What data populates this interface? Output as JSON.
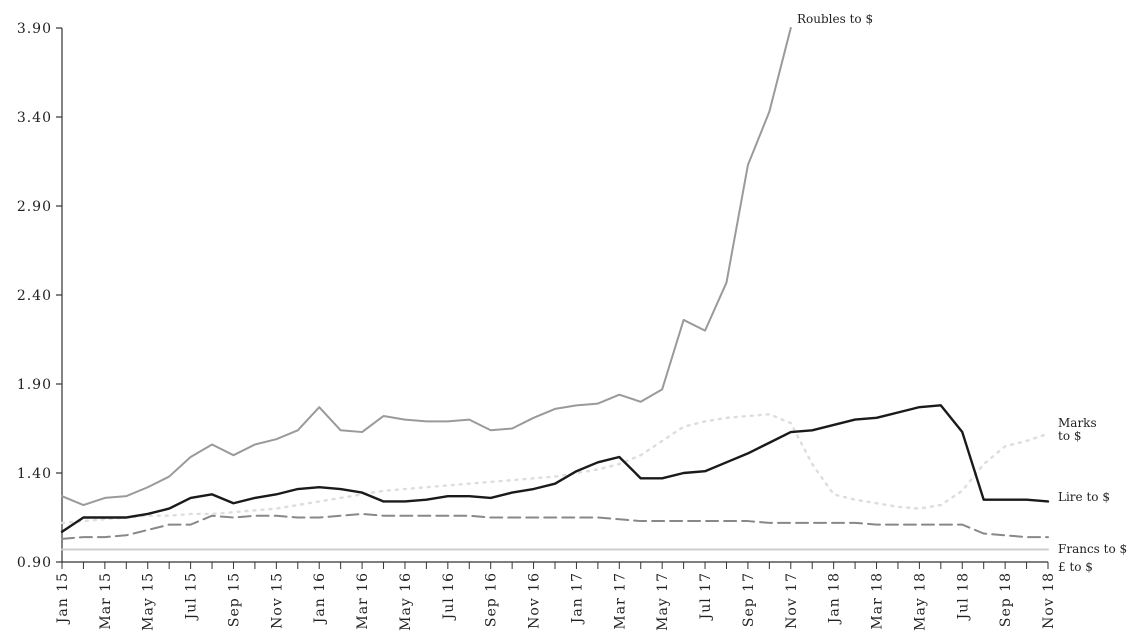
{
  "chart_data": {
    "type": "line",
    "title": "",
    "xlabel": "",
    "ylabel": "",
    "ylim": [
      0.9,
      3.9
    ],
    "yticks": [
      "0.90",
      "1.40",
      "1.90",
      "2.40",
      "2.90",
      "3.40",
      "3.90"
    ],
    "x_tick_labels": [
      "Jan 15",
      "Mar 15",
      "May 15",
      "Jul 15",
      "Sep 15",
      "Nov 15",
      "Jan 16",
      "Mar 16",
      "May 16",
      "Jul 16",
      "Sep 16",
      "Nov 16",
      "Jan 17",
      "Mar 17",
      "May 17",
      "Jul 17",
      "Sep 17",
      "Nov 17",
      "Jan 18",
      "Mar 18",
      "May 18",
      "Jul 18",
      "Sep 18",
      "Nov 18"
    ],
    "x_months": [
      "Jan 15",
      "Feb 15",
      "Mar 15",
      "Apr 15",
      "May 15",
      "Jun 15",
      "Jul 15",
      "Aug 15",
      "Sep 15",
      "Oct 15",
      "Nov 15",
      "Dec 15",
      "Jan 16",
      "Feb 16",
      "Mar 16",
      "Apr 16",
      "May 16",
      "Jun 16",
      "Jul 16",
      "Aug 16",
      "Sep 16",
      "Oct 16",
      "Nov 16",
      "Dec 16",
      "Jan 17",
      "Feb 17",
      "Mar 17",
      "Apr 17",
      "May 17",
      "Jun 17",
      "Jul 17",
      "Aug 17",
      "Sep 17",
      "Oct 17",
      "Nov 17",
      "Dec 17",
      "Jan 18",
      "Feb 18",
      "Mar 18",
      "Apr 18",
      "May 18",
      "Jun 18",
      "Jul 18",
      "Aug 18",
      "Sep 18",
      "Oct 18",
      "Nov 18"
    ],
    "grid": false,
    "legend": "labels at line ends (right)",
    "series": [
      {
        "name": "Roubles to $",
        "color": "#9a9a9a",
        "style": "solid",
        "values": [
          1.27,
          1.22,
          1.26,
          1.27,
          1.32,
          1.38,
          1.49,
          1.56,
          1.5,
          1.56,
          1.59,
          1.64,
          1.77,
          1.64,
          1.63,
          1.72,
          1.7,
          1.69,
          1.69,
          1.7,
          1.64,
          1.65,
          1.71,
          1.76,
          1.78,
          1.79,
          1.84,
          1.8,
          1.87,
          2.26,
          2.2,
          2.47,
          3.13,
          3.43,
          3.9
        ]
      },
      {
        "name": "Marks to $",
        "color": "#dddddd",
        "style": "dotted",
        "values": [
          1.12,
          1.13,
          1.14,
          1.15,
          1.16,
          1.16,
          1.17,
          1.17,
          1.18,
          1.19,
          1.2,
          1.22,
          1.24,
          1.26,
          1.28,
          1.3,
          1.31,
          1.32,
          1.33,
          1.34,
          1.35,
          1.36,
          1.37,
          1.38,
          1.4,
          1.42,
          1.45,
          1.5,
          1.58,
          1.66,
          1.69,
          1.71,
          1.72,
          1.73,
          1.68,
          1.45,
          1.28,
          1.25,
          1.23,
          1.21,
          1.2,
          1.22,
          1.3,
          1.45,
          1.55,
          1.58,
          1.62
        ]
      },
      {
        "name": "Lire to $",
        "color": "#1a1a1a",
        "style": "solid",
        "values": [
          1.07,
          1.15,
          1.15,
          1.15,
          1.17,
          1.2,
          1.26,
          1.28,
          1.23,
          1.26,
          1.28,
          1.31,
          1.32,
          1.31,
          1.29,
          1.24,
          1.24,
          1.25,
          1.27,
          1.27,
          1.26,
          1.29,
          1.31,
          1.34,
          1.41,
          1.46,
          1.49,
          1.37,
          1.37,
          1.4,
          1.41,
          1.46,
          1.51,
          1.57,
          1.63,
          1.64,
          1.67,
          1.7,
          1.71,
          1.74,
          1.77,
          1.78,
          1.63,
          1.25,
          1.25,
          1.25,
          1.24
        ]
      },
      {
        "name": "Francs to $",
        "color": "#888888",
        "style": "dashed",
        "values": [
          1.03,
          1.04,
          1.04,
          1.05,
          1.08,
          1.11,
          1.11,
          1.16,
          1.15,
          1.16,
          1.16,
          1.15,
          1.15,
          1.16,
          1.17,
          1.16,
          1.16,
          1.16,
          1.16,
          1.16,
          1.15,
          1.15,
          1.15,
          1.15,
          1.15,
          1.15,
          1.14,
          1.13,
          1.13,
          1.13,
          1.13,
          1.13,
          1.13,
          1.12,
          1.12,
          1.12,
          1.12,
          1.12,
          1.11,
          1.11,
          1.11,
          1.11,
          1.11,
          1.06,
          1.05,
          1.04,
          1.04
        ]
      },
      {
        "name": "£ to $",
        "color": "#cccccc",
        "style": "solid",
        "values": [
          0.97,
          0.97,
          0.97,
          0.97,
          0.97,
          0.97,
          0.97,
          0.97,
          0.97,
          0.97,
          0.97,
          0.97,
          0.97,
          0.97,
          0.97,
          0.97,
          0.97,
          0.97,
          0.97,
          0.97,
          0.97,
          0.97,
          0.97,
          0.97,
          0.97,
          0.97,
          0.97,
          0.97,
          0.97,
          0.97,
          0.97,
          0.97,
          0.97,
          0.97,
          0.97,
          0.97,
          0.97,
          0.97,
          0.97,
          0.97,
          0.97,
          0.97,
          0.97,
          0.97,
          0.97,
          0.97,
          0.97
        ]
      }
    ]
  }
}
